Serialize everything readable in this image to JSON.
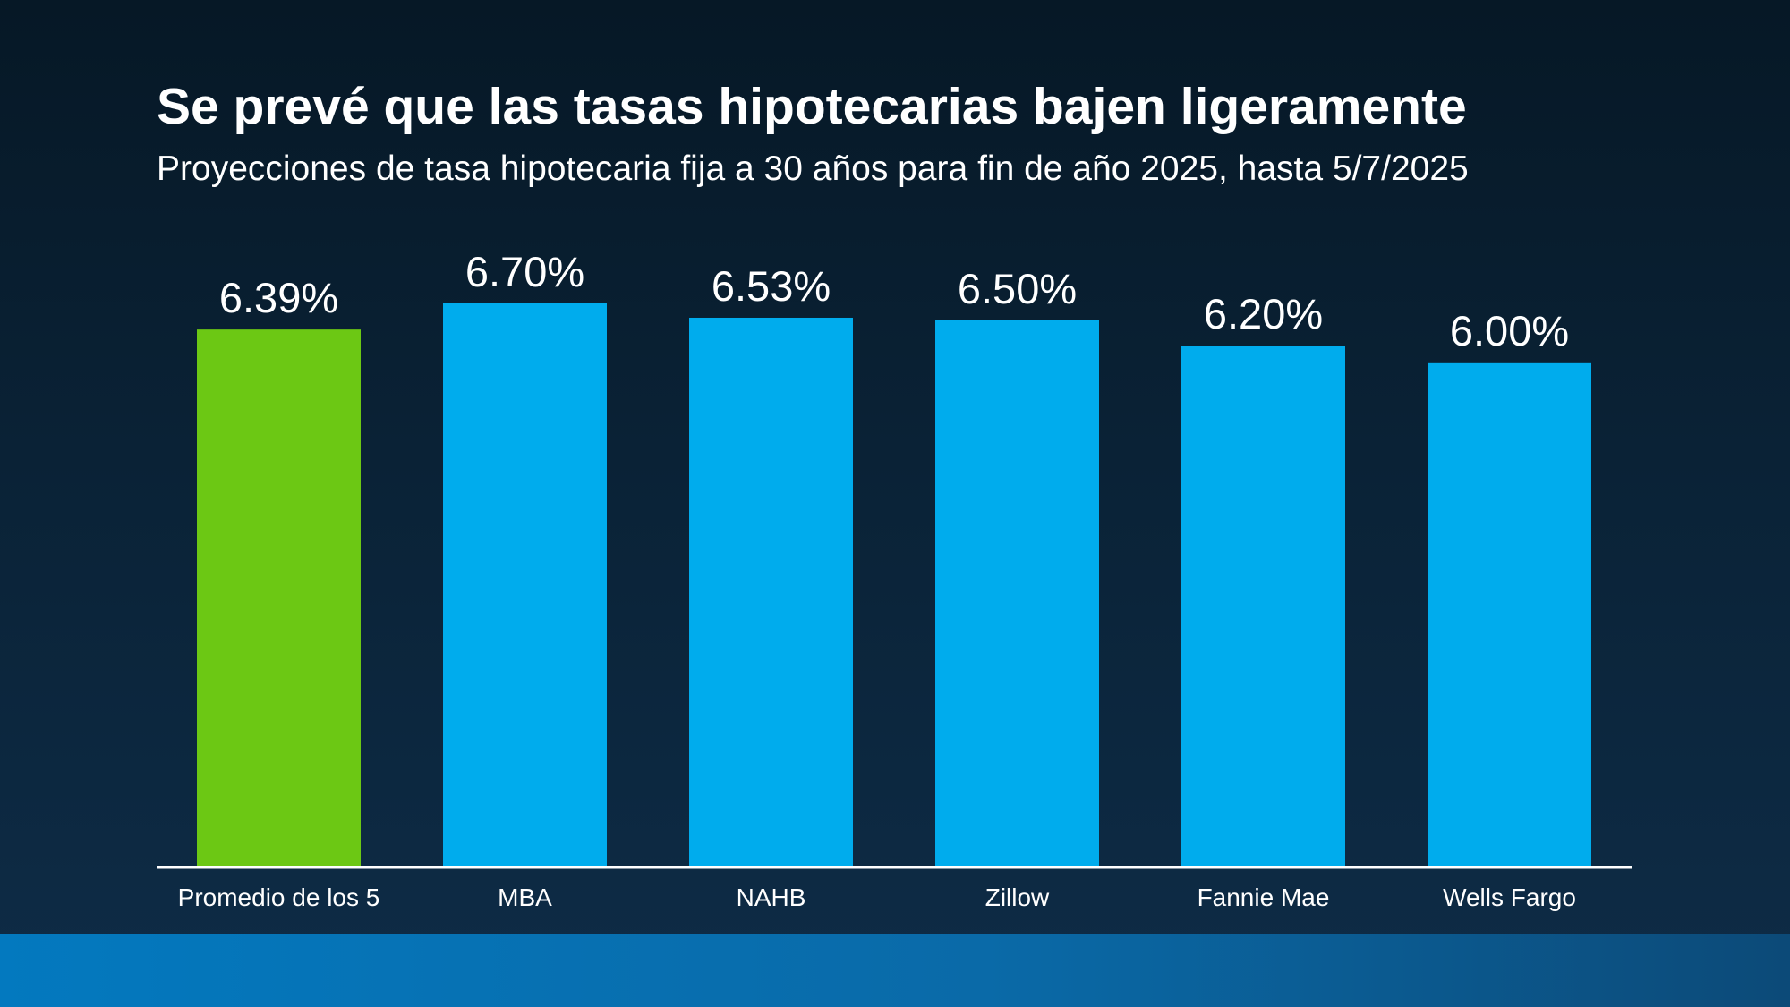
{
  "title": "Se prevé que las tasas hipotecarias bajen ligeramente",
  "subtitle": "Proyecciones de tasa hipotecaria fija a 30 años para fin de año 2025, hasta 5/7/2025",
  "colors": {
    "highlight_bar": "#6cc814",
    "bar": "#00aced",
    "axis_line": "#ffffff",
    "text": "#ffffff",
    "band": "#0379bf"
  },
  "chart_data": {
    "type": "bar",
    "categories": [
      "Promedio de los 5",
      "MBA",
      "NAHB",
      "Zillow",
      "Fannie Mae",
      "Wells Fargo"
    ],
    "values": [
      6.39,
      6.7,
      6.53,
      6.5,
      6.2,
      6.0
    ],
    "data_labels": [
      "6.39%",
      "6.70%",
      "6.53%",
      "6.50%",
      "6.20%",
      "6.00%"
    ],
    "highlighted_category": "Promedio de los 5",
    "ylim": [
      0,
      6.7
    ],
    "xlabel": "",
    "ylabel": "",
    "grid": false,
    "legend": "none"
  }
}
